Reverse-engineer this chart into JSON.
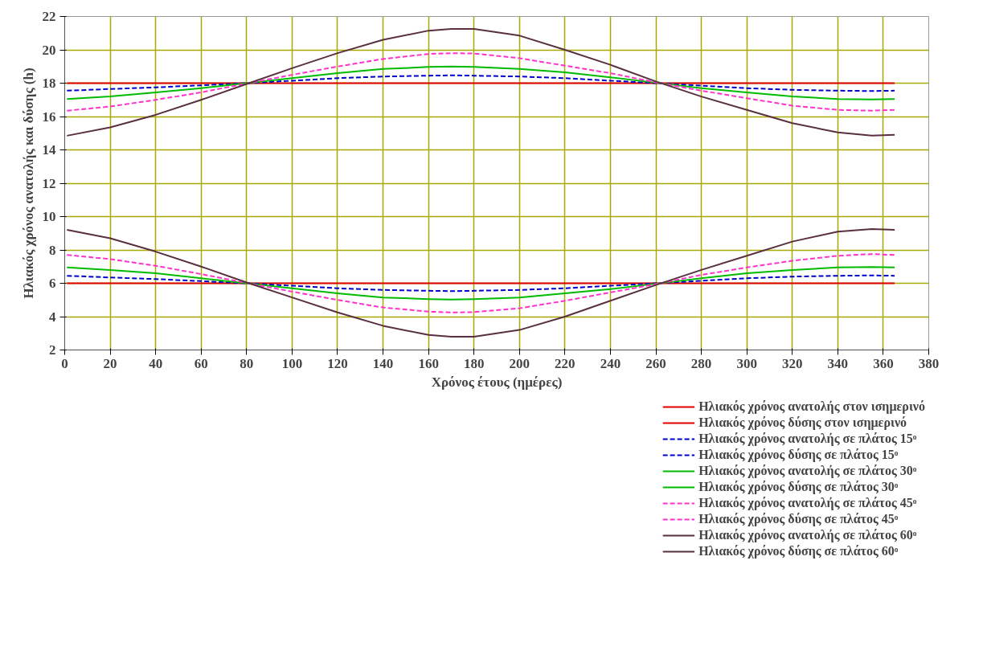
{
  "chart_data": {
    "type": "line",
    "xlabel": "Χρόνος έτους (ημέρες)",
    "ylabel": "Ηλιακός χρόνος ανατολής και δύσης (h)",
    "x": [
      1,
      20,
      40,
      60,
      80,
      100,
      120,
      140,
      160,
      170,
      180,
      200,
      220,
      240,
      260,
      280,
      300,
      320,
      340,
      355,
      365
    ],
    "xlim": [
      0,
      380
    ],
    "xticks": [
      0,
      20,
      40,
      60,
      80,
      100,
      120,
      140,
      160,
      180,
      200,
      220,
      240,
      260,
      280,
      300,
      320,
      340,
      360,
      380
    ],
    "ylim": [
      2,
      22
    ],
    "yticks": [
      2,
      4,
      6,
      8,
      10,
      12,
      14,
      16,
      18,
      20,
      22
    ],
    "grid": true,
    "legend": "bottom right",
    "series": [
      {
        "name": "Ηλιακός χρόνος ανατολής στον ισημερινό",
        "color": "#e00000",
        "line_style": "solid",
        "values": [
          6,
          6,
          6,
          6,
          6,
          6,
          6,
          6,
          6,
          6,
          6,
          6,
          6,
          6,
          6,
          6,
          6,
          6,
          6,
          6,
          6
        ]
      },
      {
        "name": "Ηλιακός χρόνος δύσης στον ισημερινό",
        "color": "#e00000",
        "line_style": "solid",
        "values": [
          18,
          18,
          18,
          18,
          18,
          18,
          18,
          18,
          18,
          18,
          18,
          18,
          18,
          18,
          18,
          18,
          18,
          18,
          18,
          18,
          18
        ]
      },
      {
        "name": "Ηλιακός χρόνος ανατολής σε πλάτος 15ᵒ",
        "color": "#0000cc",
        "line_style": "dashed",
        "values": [
          6.45,
          6.35,
          6.25,
          6.13,
          6.0,
          5.85,
          5.7,
          5.6,
          5.55,
          5.53,
          5.55,
          5.6,
          5.7,
          5.85,
          6.0,
          6.15,
          6.3,
          6.4,
          6.45,
          6.47,
          6.45
        ]
      },
      {
        "name": "Ηλιακός χρόνος δύσης σε πλάτος 15ᵒ",
        "color": "#0000cc",
        "line_style": "dashed",
        "values": [
          17.55,
          17.65,
          17.75,
          17.87,
          18.0,
          18.15,
          18.3,
          18.4,
          18.45,
          18.47,
          18.45,
          18.4,
          18.3,
          18.15,
          18.0,
          17.85,
          17.7,
          17.6,
          17.55,
          17.53,
          17.55
        ]
      },
      {
        "name": "Ηλιακός χρόνος ανατολής σε πλάτος 30ᵒ",
        "color": "#00bb00",
        "line_style": "solid",
        "values": [
          6.95,
          6.8,
          6.6,
          6.3,
          6.0,
          5.7,
          5.4,
          5.15,
          5.05,
          5.02,
          5.05,
          5.15,
          5.4,
          5.65,
          5.97,
          6.3,
          6.6,
          6.8,
          6.95,
          6.98,
          6.95
        ]
      },
      {
        "name": "Ηλιακός χρόνος δύσης σε πλάτος 30ᵒ",
        "color": "#00bb00",
        "line_style": "solid",
        "values": [
          17.05,
          17.2,
          17.45,
          17.7,
          18.0,
          18.3,
          18.6,
          18.85,
          18.97,
          19.0,
          18.97,
          18.85,
          18.65,
          18.35,
          18.03,
          17.7,
          17.45,
          17.2,
          17.05,
          17.02,
          17.05
        ]
      },
      {
        "name": "Ηλιακός χρόνος ανατολής σε πλάτος 45ᵒ",
        "color": "#ff33cc",
        "line_style": "dashed",
        "values": [
          7.7,
          7.45,
          7.05,
          6.55,
          6.02,
          5.5,
          5.0,
          4.55,
          4.3,
          4.25,
          4.27,
          4.5,
          4.95,
          5.45,
          5.95,
          6.5,
          6.95,
          7.35,
          7.65,
          7.75,
          7.7
        ]
      },
      {
        "name": "Ηλιακός χρόνος δύσης σε πλάτος 45ᵒ",
        "color": "#ff33cc",
        "line_style": "dashed",
        "values": [
          16.35,
          16.6,
          17.0,
          17.45,
          17.98,
          18.5,
          19.0,
          19.45,
          19.75,
          19.8,
          19.78,
          19.5,
          19.05,
          18.6,
          18.05,
          17.55,
          17.1,
          16.65,
          16.4,
          16.35,
          16.4
        ]
      },
      {
        "name": "Ηλιακός χρόνος ανατολής σε πλάτος 60ᵒ",
        "color": "#5a3040",
        "line_style": "solid",
        "values": [
          9.2,
          8.7,
          7.9,
          7.0,
          6.05,
          5.15,
          4.25,
          3.45,
          2.9,
          2.8,
          2.8,
          3.2,
          4.0,
          4.95,
          5.9,
          6.8,
          7.65,
          8.5,
          9.1,
          9.25,
          9.2
        ]
      },
      {
        "name": "Ηλιακός χρόνος δύσης σε πλάτος 60ᵒ",
        "color": "#5a3040",
        "line_style": "solid",
        "values": [
          14.85,
          15.35,
          16.1,
          17.0,
          17.95,
          18.9,
          19.8,
          20.6,
          21.15,
          21.25,
          21.25,
          20.85,
          20.0,
          19.1,
          18.1,
          17.2,
          16.4,
          15.6,
          15.05,
          14.85,
          14.9
        ]
      }
    ]
  }
}
